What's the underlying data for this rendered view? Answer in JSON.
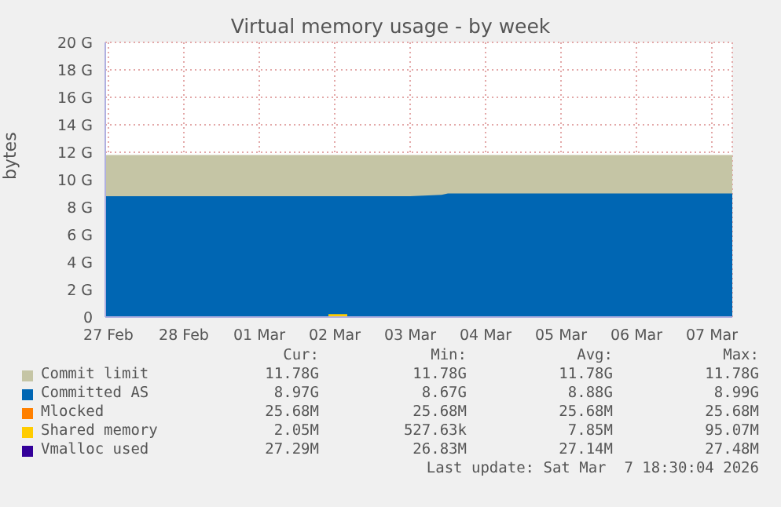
{
  "chart_data": {
    "type": "area",
    "title": "Virtual memory usage - by week",
    "ylabel": "bytes",
    "x": [
      "2026-02-27T11:00",
      "2026-02-27T12:30",
      "2026-03-01T00:00",
      "2026-03-02T10:00",
      "2026-03-02T16:00",
      "2026-03-03T12:00",
      "2026-03-03T22:00",
      "2026-03-04T00:00",
      "2026-03-05T12:00",
      "2026-03-07T18:30"
    ],
    "series": [
      {
        "name": "Commit limit",
        "color": "#c5c5a5",
        "values": [
          11.8,
          11.8,
          11.8,
          11.8,
          11.8,
          11.8,
          11.8,
          11.8,
          11.8,
          11.8
        ]
      },
      {
        "name": "Committed AS",
        "color": "#0066b3",
        "values": [
          8.8,
          8.8,
          8.8,
          8.8,
          8.8,
          8.8,
          8.9,
          9.0,
          9.0,
          9.0
        ]
      },
      {
        "name": "Mlocked",
        "type": "line",
        "color": "#ff8000",
        "values": [
          null,
          null,
          null,
          null,
          null,
          null,
          null,
          null,
          null,
          null
        ]
      },
      {
        "name": "Shared memory",
        "type": "line",
        "color": "#ffcc00",
        "x": [
          "2026-03-02T10:00",
          "2026-03-02T16:00"
        ],
        "values": [
          0.1,
          0.1
        ]
      },
      {
        "name": "Vmalloc used",
        "type": "line",
        "color": "#330099",
        "values": [
          null,
          null,
          null,
          null,
          null,
          null,
          null,
          null,
          null,
          null
        ]
      }
    ],
    "xlim": [
      "2026-02-27T11:00",
      "2026-03-07T18:30"
    ],
    "xticks": [
      {
        "value": "2026-02-27T12:00",
        "label": "27 Feb"
      },
      {
        "value": "2026-02-28T12:00",
        "label": "28 Feb"
      },
      {
        "value": "2026-03-01T12:00",
        "label": "01 Mar"
      },
      {
        "value": "2026-03-02T12:00",
        "label": "02 Mar"
      },
      {
        "value": "2026-03-03T12:00",
        "label": "03 Mar"
      },
      {
        "value": "2026-03-04T12:00",
        "label": "04 Mar"
      },
      {
        "value": "2026-03-05T12:00",
        "label": "05 Mar"
      },
      {
        "value": "2026-03-06T12:00",
        "label": "06 Mar"
      },
      {
        "value": "2026-03-07T12:00",
        "label": "07 Mar"
      }
    ],
    "ylim": [
      0,
      20
    ],
    "yticks": [
      0,
      {
        "value": 2,
        "label": "2 G"
      },
      {
        "value": 4,
        "label": "4 G"
      },
      {
        "value": 6,
        "label": "6 G"
      },
      {
        "value": 8,
        "label": "8 G"
      },
      {
        "value": 10,
        "label": "10 G"
      },
      {
        "value": 12,
        "label": "12 G"
      },
      {
        "value": 14,
        "label": "14 G"
      },
      {
        "value": 16,
        "label": "16 G"
      },
      {
        "value": 18,
        "label": "18 G"
      },
      {
        "value": 20,
        "label": "20 G"
      }
    ],
    "grid": true,
    "legend": "bottom",
    "annotations": [
      "Cur:",
      "Min:",
      "Avg:",
      "Max:",
      "11.78G",
      "11.78G",
      "11.78G",
      "11.78G",
      "8.97G",
      "8.67G",
      "8.88G",
      "8.99G",
      "25.68M",
      "25.68M",
      "25.68M",
      "25.68M",
      "2.05M",
      "527.63k",
      "7.85M",
      "95.07M",
      "27.29M",
      "26.83M",
      "27.14M",
      "27.48M",
      "Last update: Sat Mar  7 18:30:04 2026"
    ]
  }
}
